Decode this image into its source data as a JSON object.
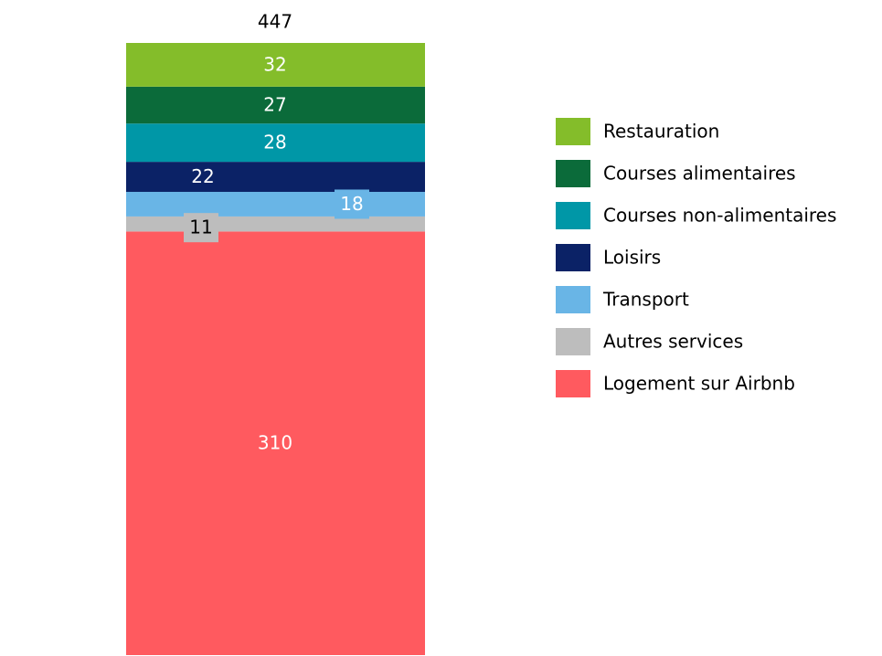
{
  "chart_data": {
    "type": "bar",
    "stacked": true,
    "total": 447,
    "series": [
      {
        "name": "Restauration",
        "color": "#84bd2a",
        "values": [
          32
        ]
      },
      {
        "name": "Courses alimentaires",
        "color": "#0b6b3a",
        "values": [
          27
        ]
      },
      {
        "name": "Courses non-alimentaires",
        "color": "#0097a7",
        "values": [
          28
        ]
      },
      {
        "name": "Loisirs",
        "color": "#0b2266",
        "values": [
          22
        ]
      },
      {
        "name": "Transport",
        "color": "#69b5e6",
        "values": [
          18
        ]
      },
      {
        "name": "Autres services",
        "color": "#bdbdbd",
        "values": [
          11
        ]
      },
      {
        "name": "Logement sur Airbnb",
        "color": "#ff5a5f",
        "values": [
          310
        ]
      }
    ],
    "legend": "right"
  }
}
